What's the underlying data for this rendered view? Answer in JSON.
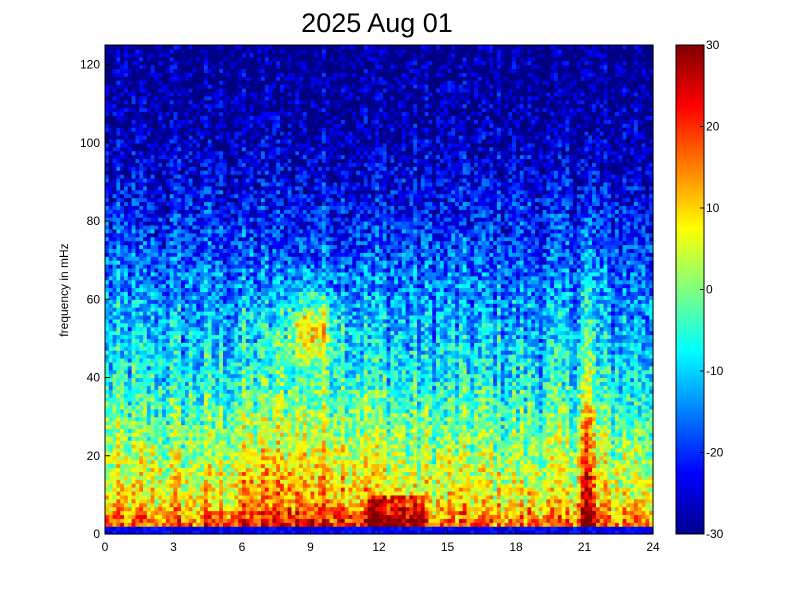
{
  "chart_data": {
    "type": "heatmap",
    "title": "2025 Aug 01",
    "xlabel": "",
    "ylabel": "frequency in mHz",
    "xlim": [
      0,
      24
    ],
    "ylim": [
      0,
      125
    ],
    "x_ticks": [
      "0",
      "3",
      "6",
      "9",
      "12",
      "15",
      "18",
      "21",
      "24"
    ],
    "y_ticks": [
      "0",
      "20",
      "40",
      "60",
      "80",
      "100",
      "120"
    ],
    "colorbar": {
      "range": [
        -30,
        30
      ],
      "ticks": [
        "30",
        "20",
        "10",
        "0",
        "-10",
        "-20",
        "-30"
      ],
      "colormap": "jet"
    },
    "grid": false,
    "grid_size": {
      "time_bins": 144,
      "freq_bins": 125
    },
    "background_level_profile": [
      {
        "freq": 0,
        "level": -24
      },
      {
        "freq": 2,
        "level": 18
      },
      {
        "freq": 8,
        "level": 8
      },
      {
        "freq": 20,
        "level": 2
      },
      {
        "freq": 40,
        "level": -8
      },
      {
        "freq": 60,
        "level": -14
      },
      {
        "freq": 80,
        "level": -21
      },
      {
        "freq": 100,
        "level": -27
      },
      {
        "freq": 125,
        "level": -30
      }
    ],
    "features": [
      {
        "name": "broadband daytime activity",
        "time_start": 4.5,
        "time_end": 13.5,
        "freq_max": 70,
        "level_boost": 8
      },
      {
        "name": "high-power patch",
        "time_center": 9.0,
        "freq_center": 52,
        "level": 16
      },
      {
        "name": "low-frequency bursts",
        "time_start": 12,
        "time_end": 14,
        "freq_max": 10,
        "level": 22
      },
      {
        "name": "event near 21h",
        "time_center": 21.0,
        "freq_max": 85,
        "level": 18
      }
    ]
  }
}
